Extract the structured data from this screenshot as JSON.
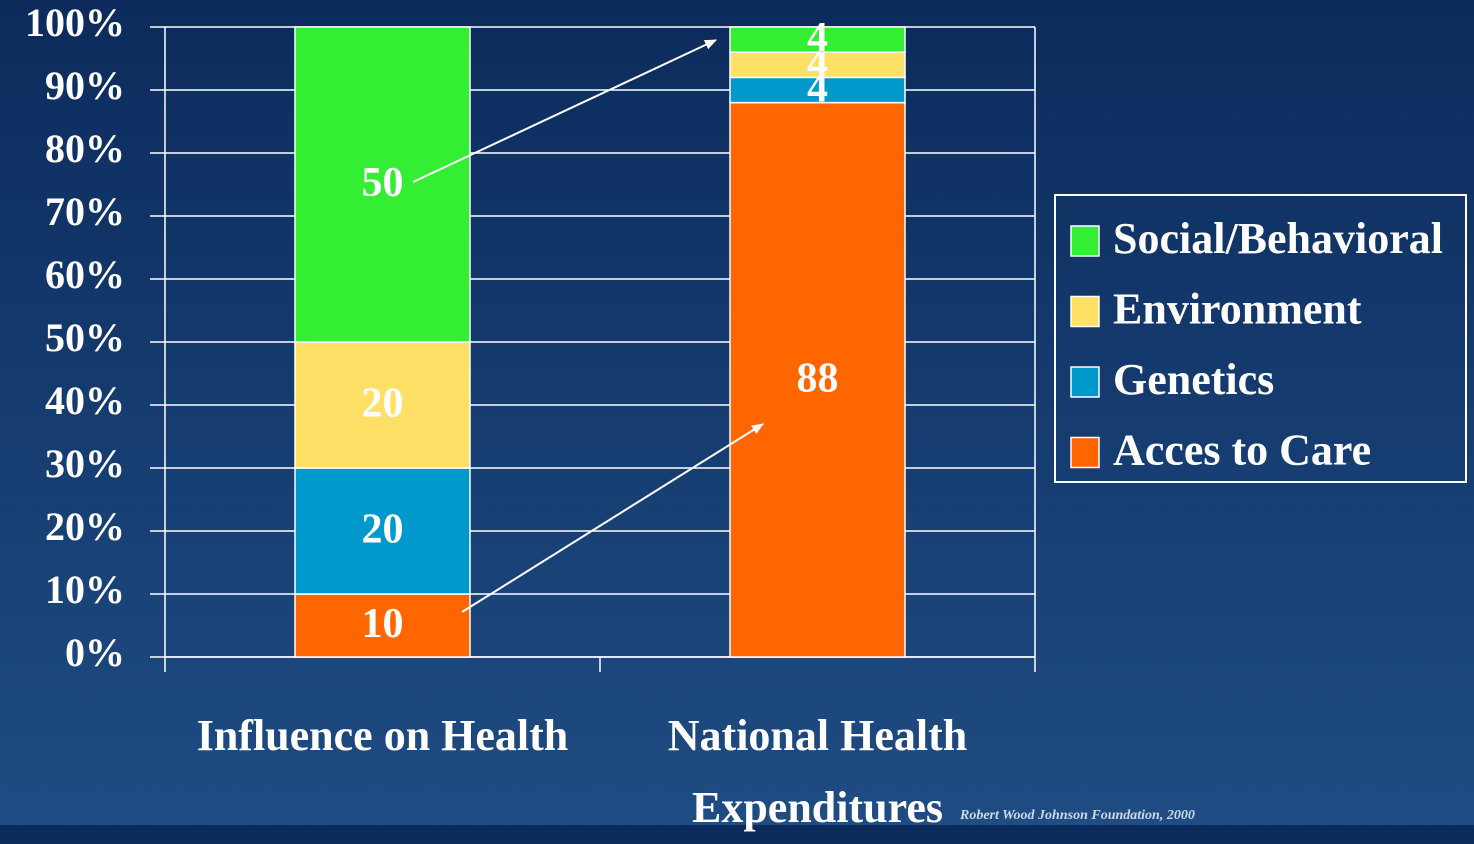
{
  "chart_data": {
    "type": "stacked_bar",
    "categories": [
      "Influence on Health",
      "National Health Expenditures"
    ],
    "series": [
      {
        "name": "Acces to Care",
        "color": "#ff6600",
        "values": [
          10,
          88
        ]
      },
      {
        "name": "Genetics",
        "color": "#0099cc",
        "values": [
          20,
          4
        ]
      },
      {
        "name": "Environment",
        "color": "#ffe066",
        "values": [
          20,
          4
        ]
      },
      {
        "name": "Social/Behavioral",
        "color": "#33ee33",
        "values": [
          50,
          4
        ]
      }
    ],
    "ylim": [
      0,
      100
    ],
    "yticks": [
      {
        "value": 0,
        "label": "0%"
      },
      {
        "value": 10,
        "label": "10%"
      },
      {
        "value": 20,
        "label": "20%"
      },
      {
        "value": 30,
        "label": "30%"
      },
      {
        "value": 40,
        "label": "40%"
      },
      {
        "value": 50,
        "label": "50%"
      },
      {
        "value": 60,
        "label": "60%"
      },
      {
        "value": 70,
        "label": "70%"
      },
      {
        "value": 80,
        "label": "80%"
      },
      {
        "value": 90,
        "label": "90%"
      },
      {
        "value": 100,
        "label": "100%"
      }
    ],
    "grid": true,
    "legend": "right",
    "source": "Robert Wood Johnson Foundation, 2000"
  }
}
